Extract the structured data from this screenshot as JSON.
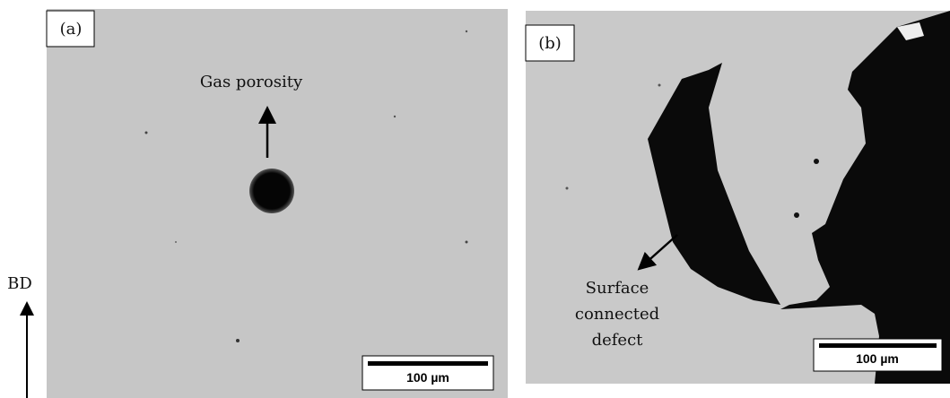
{
  "axis_label": "BD",
  "panels": [
    {
      "label": "(a)",
      "annotation": "Gas porosity",
      "scale_bar": "100 µm"
    },
    {
      "label": "(b)",
      "annotation_lines": [
        "Surface",
        "connected",
        "defect"
      ],
      "scale_bar": "100 µm"
    }
  ]
}
